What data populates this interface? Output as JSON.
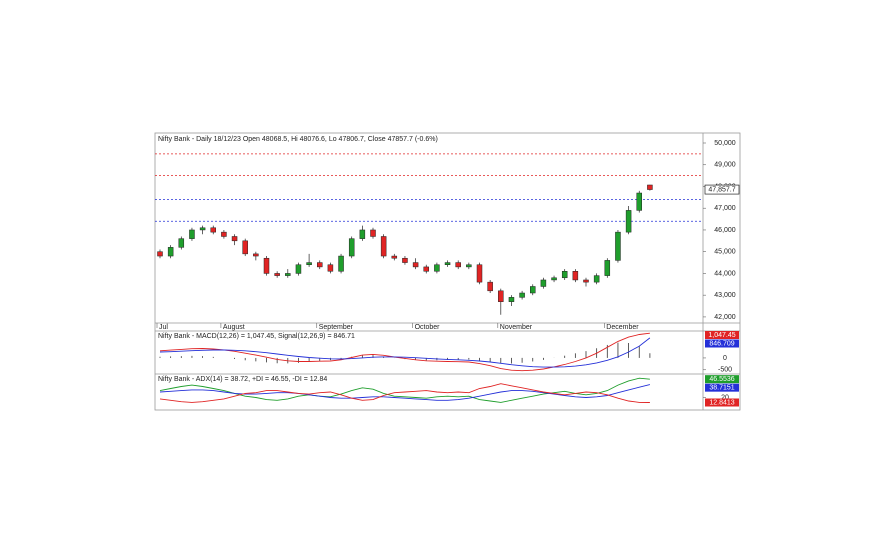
{
  "chart_data": [
    {
      "type": "candlestick",
      "title": "Nifty Bank - Daily 18/12/23 Open 48068.5, Hi 48076.6, Lo 47806.7, Close 47857.7 (-0.6%)",
      "categories": [
        "Jul",
        null,
        null,
        null,
        null,
        null,
        "August",
        null,
        null,
        null,
        null,
        null,
        null,
        null,
        null,
        "September",
        null,
        null,
        null,
        null,
        null,
        null,
        null,
        null,
        "October",
        null,
        null,
        null,
        null,
        null,
        null,
        null,
        "November",
        null,
        null,
        null,
        null,
        null,
        null,
        null,
        null,
        null,
        "December",
        null,
        null,
        null,
        null
      ],
      "open": [
        45000,
        44800,
        45200,
        45600,
        46000,
        46100,
        45900,
        45700,
        45500,
        44900,
        44700,
        44000,
        43900,
        44000,
        44400,
        44500,
        44400,
        44100,
        44800,
        45600,
        46000,
        45700,
        44800,
        44700,
        44500,
        44300,
        44100,
        44400,
        44500,
        44300,
        44400,
        43600,
        43200,
        42700,
        42900,
        43100,
        43400,
        43700,
        43800,
        44100,
        43700,
        43600,
        43900,
        44600,
        45900,
        46900,
        48068.5
      ],
      "high": [
        45100,
        45300,
        45700,
        46100,
        46200,
        46200,
        46000,
        45800,
        45600,
        45000,
        44800,
        44100,
        44200,
        44500,
        44900,
        44600,
        44500,
        44900,
        45700,
        46200,
        46100,
        45800,
        44900,
        44800,
        44700,
        44400,
        44500,
        44600,
        44600,
        44500,
        44500,
        43700,
        43300,
        43000,
        43200,
        43500,
        43800,
        43900,
        44200,
        44200,
        43800,
        44000,
        44700,
        46000,
        47100,
        47800,
        48076.6
      ],
      "low": [
        44700,
        44700,
        45100,
        45500,
        45800,
        45800,
        45600,
        45300,
        44800,
        44600,
        43900,
        43800,
        43800,
        43900,
        44300,
        44200,
        44000,
        44000,
        44700,
        45500,
        45600,
        44700,
        44600,
        44400,
        44200,
        44000,
        44000,
        44300,
        44200,
        44200,
        43500,
        43100,
        42100,
        42500,
        42800,
        43000,
        43300,
        43600,
        43700,
        43600,
        43400,
        43500,
        43800,
        44500,
        45800,
        46800,
        47806.7
      ],
      "close": [
        44800,
        45200,
        45600,
        46000,
        46100,
        45900,
        45700,
        45500,
        44900,
        44800,
        44000,
        43900,
        44000,
        44400,
        44500,
        44300,
        44100,
        44800,
        45600,
        46000,
        45700,
        44800,
        44700,
        44500,
        44300,
        44100,
        44400,
        44500,
        44300,
        44400,
        43600,
        43200,
        42700,
        42900,
        43100,
        43400,
        43700,
        43800,
        44100,
        43700,
        43600,
        43900,
        44600,
        45900,
        46900,
        47700,
        47857.7
      ],
      "last_label": "47,857.7",
      "up_color": "#1f9e2c",
      "down_color": "#e02424",
      "hlines": [
        {
          "value": 49500,
          "color": "#e02424"
        },
        {
          "value": 48500,
          "color": "#e02424"
        },
        {
          "value": 47400,
          "color": "#2430d8"
        },
        {
          "value": 46400,
          "color": "#2430d8"
        }
      ],
      "ylim": [
        41720,
        50460
      ],
      "yticks": [
        {
          "value": 42000,
          "label": "42,000"
        },
        {
          "value": 43000,
          "label": "43,000"
        },
        {
          "value": 44000,
          "label": "44,000"
        },
        {
          "value": 45000,
          "label": "45,000"
        },
        {
          "value": 46000,
          "label": "46,000"
        },
        {
          "value": 47000,
          "label": "47,000"
        },
        {
          "value": 48000,
          "label": "48,000"
        },
        {
          "value": 49000,
          "label": "49,000"
        },
        {
          "value": 50000,
          "label": "50,000"
        }
      ]
    },
    {
      "type": "macd",
      "title": "Nifty Bank - MACD(12,26) = 1,047.45, Signal(12,26,9) = 846.71",
      "series": [
        {
          "kind": "bar",
          "color": "#333333",
          "values": [
            50,
            65,
            75,
            85,
            75,
            45,
            5,
            -45,
            -100,
            -145,
            -190,
            -225,
            -230,
            -210,
            -170,
            -130,
            -95,
            -35,
            50,
            120,
            120,
            65,
            -5,
            -50,
            -90,
            -105,
            -100,
            -90,
            -80,
            -70,
            -110,
            -160,
            -225,
            -235,
            -205,
            -150,
            -80,
            10,
            95,
            195,
            290,
            410,
            550,
            650,
            630,
            490,
            200.74
          ]
        },
        {
          "kind": "line",
          "color": "#e02424",
          "value_label": "1,047.45",
          "values": [
            300,
            330,
            360,
            390,
            400,
            380,
            340,
            280,
            200,
            120,
            30,
            -60,
            -120,
            -150,
            -150,
            -140,
            -130,
            -80,
            20,
            120,
            150,
            110,
            40,
            -20,
            -80,
            -120,
            -140,
            -150,
            -160,
            -170,
            -240,
            -330,
            -450,
            -520,
            -540,
            -520,
            -470,
            -380,
            -280,
            -150,
            0,
            200,
            450,
            700,
            880,
            990,
            1047.45
          ]
        },
        {
          "kind": "line",
          "color": "#2430d8",
          "value_label": "846.709",
          "values": [
            250,
            265,
            285,
            305,
            325,
            335,
            335,
            325,
            300,
            265,
            220,
            165,
            110,
            60,
            20,
            -10,
            -35,
            -45,
            -30,
            0,
            30,
            45,
            45,
            30,
            10,
            -15,
            -40,
            -60,
            -80,
            -100,
            -130,
            -170,
            -225,
            -285,
            -335,
            -370,
            -390,
            -390,
            -375,
            -345,
            -290,
            -210,
            -100,
            50,
            250,
            500,
            846.71
          ]
        }
      ],
      "ylim": [
        -680,
        1140
      ],
      "yticks": [
        -500,
        0
      ]
    },
    {
      "type": "adx",
      "title": "Nifty Bank - ADX(14) = 38.72, +DI = 46.55, -DI = 12.84",
      "series": [
        {
          "kind": "line",
          "color": "#1f9e2c",
          "value_label": "46.5536",
          "values": [
            30,
            33,
            36,
            38,
            36,
            33,
            30,
            26,
            22,
            20,
            17,
            16,
            18,
            22,
            24,
            22,
            21,
            25,
            30,
            34,
            32,
            26,
            22,
            21,
            20,
            19,
            21,
            22,
            21,
            22,
            17,
            15,
            13,
            16,
            19,
            22,
            25,
            27,
            29,
            26,
            24,
            26,
            30,
            38,
            44,
            48,
            46.55
          ]
        },
        {
          "kind": "line",
          "color": "#2430d8",
          "value_label": "38.7151",
          "values": [
            28,
            29,
            30,
            31,
            31,
            30,
            28,
            26,
            25,
            25,
            26,
            27,
            27,
            26,
            24,
            22,
            20,
            19,
            19,
            20,
            21,
            21,
            20,
            19,
            18,
            17,
            16,
            16,
            17,
            19,
            22,
            25,
            28,
            30,
            30,
            29,
            27,
            25,
            23,
            21,
            20,
            21,
            23,
            27,
            31,
            35,
            38.72
          ]
        },
        {
          "kind": "line",
          "color": "#e02424",
          "value_label": "12.8413",
          "values": [
            18,
            16,
            14,
            13,
            14,
            16,
            18,
            22,
            26,
            27,
            30,
            30,
            28,
            26,
            25,
            27,
            28,
            24,
            19,
            16,
            17,
            23,
            27,
            28,
            29,
            30,
            28,
            27,
            28,
            27,
            33,
            36,
            40,
            37,
            34,
            31,
            28,
            26,
            24,
            26,
            28,
            27,
            24,
            19,
            15,
            13,
            12.84
          ]
        }
      ],
      "ylim": [
        2,
        54
      ],
      "yticks": [
        20
      ]
    }
  ]
}
